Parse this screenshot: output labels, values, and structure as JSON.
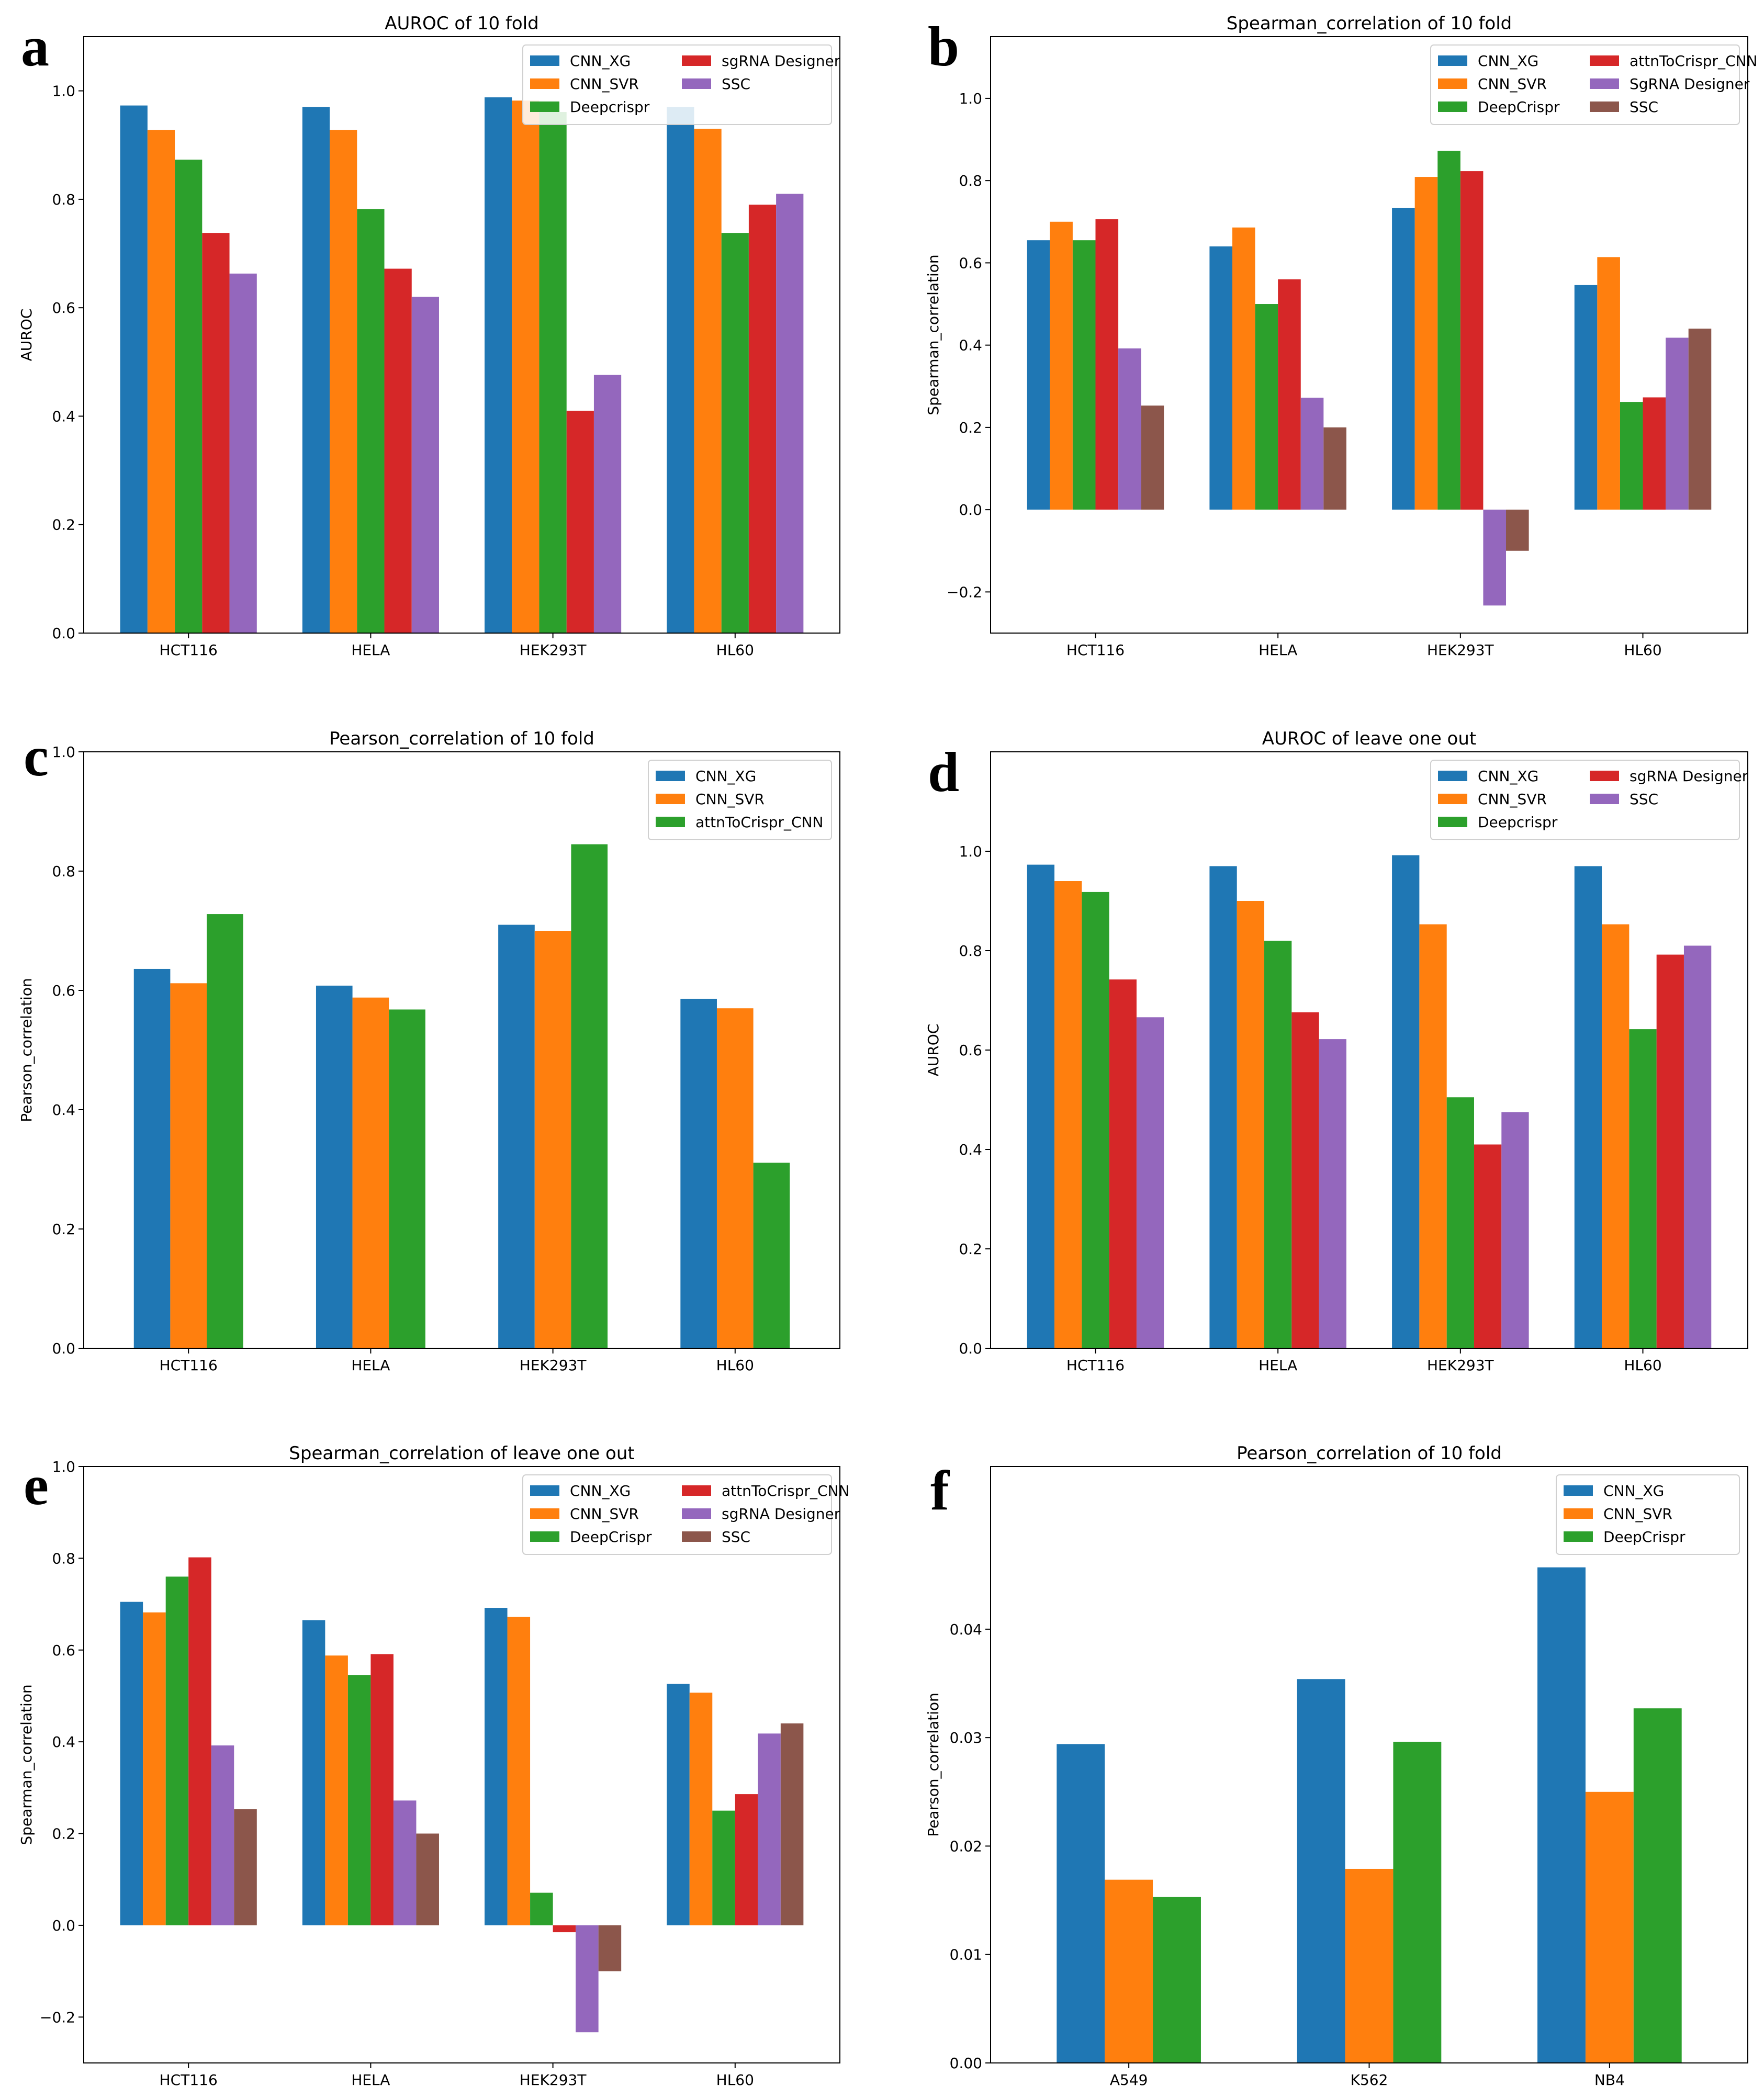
{
  "palette": {
    "CNN_XG": "#1f77b4",
    "CNN_SVR": "#ff7f0e",
    "Deepcrispr": "#2ca02c",
    "DeepCrispr": "#2ca02c",
    "sgRNA Designer": "#d62728",
    "SSC": "#9467bd",
    "attnToCrispr_CNN": "#d62728",
    "SgRNA Designer": "#9467bd",
    "SSC_brown": "#8c564b"
  },
  "chart_data": [
    {
      "panel": "a",
      "type": "bar",
      "title": "AUROC of 10 fold",
      "xlabel": "",
      "ylabel": "AUROC",
      "ylim": [
        0,
        1.1
      ],
      "yticks": [
        "0.0",
        "0.2",
        "0.4",
        "0.6",
        "0.8",
        "1.0"
      ],
      "ytick_values": [
        0,
        0.2,
        0.4,
        0.6,
        0.8,
        1.0
      ],
      "legend_position": "top-right",
      "legend_columns": 2,
      "categories": [
        "HCT116",
        "HELA",
        "HEK293T",
        "HL60"
      ],
      "series": [
        {
          "name": "CNN_XG",
          "color": "#1f77b4",
          "values": [
            0.973,
            0.97,
            0.988,
            0.97
          ]
        },
        {
          "name": "CNN_SVR",
          "color": "#ff7f0e",
          "values": [
            0.928,
            0.928,
            0.982,
            0.93
          ]
        },
        {
          "name": "Deepcrispr",
          "color": "#2ca02c",
          "values": [
            0.873,
            0.782,
            0.961,
            0.738
          ]
        },
        {
          "name": "sgRNA Designer",
          "color": "#d62728",
          "values": [
            0.738,
            0.672,
            0.41,
            0.79
          ]
        },
        {
          "name": "SSC",
          "color": "#9467bd",
          "values": [
            0.663,
            0.62,
            0.476,
            0.81
          ]
        }
      ]
    },
    {
      "panel": "b",
      "type": "bar",
      "title": "Spearman_correlation of 10 fold",
      "xlabel": "",
      "ylabel": "Spearman_correlation",
      "ylim": [
        -0.3,
        1.15
      ],
      "yticks": [
        "−0.2",
        "0.0",
        "0.2",
        "0.4",
        "0.6",
        "0.8",
        "1.0"
      ],
      "ytick_values": [
        -0.2,
        0,
        0.2,
        0.4,
        0.6,
        0.8,
        1.0
      ],
      "legend_position": "top-right",
      "legend_columns": 2,
      "categories": [
        "HCT116",
        "HELA",
        "HEK293T",
        "HL60"
      ],
      "series": [
        {
          "name": "CNN_XG",
          "color": "#1f77b4",
          "values": [
            0.655,
            0.64,
            0.733,
            0.546
          ]
        },
        {
          "name": "CNN_SVR",
          "color": "#ff7f0e",
          "values": [
            0.7,
            0.686,
            0.809,
            0.614
          ]
        },
        {
          "name": "DeepCrispr",
          "color": "#2ca02c",
          "values": [
            0.655,
            0.5,
            0.872,
            0.262
          ]
        },
        {
          "name": "attnToCrispr_CNN",
          "color": "#d62728",
          "values": [
            0.706,
            0.56,
            0.823,
            0.273
          ]
        },
        {
          "name": "SgRNA Designer",
          "color": "#9467bd",
          "values": [
            0.392,
            0.272,
            -0.233,
            0.418
          ]
        },
        {
          "name": "SSC",
          "color": "#8c564b",
          "values": [
            0.253,
            0.2,
            -0.1,
            0.44
          ]
        }
      ]
    },
    {
      "panel": "c",
      "type": "bar",
      "title": "Pearson_correlation of 10 fold",
      "xlabel": "",
      "ylabel": "Pearson_correlation",
      "ylim": [
        0,
        1.0
      ],
      "yticks": [
        "0.0",
        "0.2",
        "0.4",
        "0.6",
        "0.8",
        "1.0"
      ],
      "ytick_values": [
        0,
        0.2,
        0.4,
        0.6,
        0.8,
        1.0
      ],
      "legend_position": "top-right",
      "legend_columns": 1,
      "categories": [
        "HCT116",
        "HELA",
        "HEK293T",
        "HL60"
      ],
      "series": [
        {
          "name": "CNN_XG",
          "color": "#1f77b4",
          "values": [
            0.636,
            0.608,
            0.71,
            0.586
          ]
        },
        {
          "name": "CNN_SVR",
          "color": "#ff7f0e",
          "values": [
            0.612,
            0.588,
            0.7,
            0.57
          ]
        },
        {
          "name": "attnToCrispr_CNN",
          "color": "#2ca02c",
          "values": [
            0.728,
            0.568,
            0.845,
            0.311
          ]
        }
      ]
    },
    {
      "panel": "d",
      "type": "bar",
      "title": "AUROC of leave one out",
      "xlabel": "",
      "ylabel": "AUROC",
      "ylim": [
        0,
        1.2
      ],
      "yticks": [
        "0.0",
        "0.2",
        "0.4",
        "0.6",
        "0.8",
        "1.0"
      ],
      "ytick_values": [
        0,
        0.2,
        0.4,
        0.6,
        0.8,
        1.0
      ],
      "legend_position": "top-right",
      "legend_columns": 2,
      "categories": [
        "HCT116",
        "HELA",
        "HEK293T",
        "HL60"
      ],
      "series": [
        {
          "name": "CNN_XG",
          "color": "#1f77b4",
          "values": [
            0.973,
            0.97,
            0.992,
            0.97
          ]
        },
        {
          "name": "CNN_SVR",
          "color": "#ff7f0e",
          "values": [
            0.94,
            0.9,
            0.853,
            0.853
          ]
        },
        {
          "name": "Deepcrispr",
          "color": "#2ca02c",
          "values": [
            0.918,
            0.82,
            0.505,
            0.642
          ]
        },
        {
          "name": "sgRNA Designer",
          "color": "#d62728",
          "values": [
            0.742,
            0.676,
            0.41,
            0.792
          ]
        },
        {
          "name": "SSC",
          "color": "#9467bd",
          "values": [
            0.666,
            0.622,
            0.475,
            0.81
          ]
        }
      ]
    },
    {
      "panel": "e",
      "type": "bar",
      "title": "Spearman_correlation of leave one out",
      "xlabel": "",
      "ylabel": "Spearman_correlation",
      "ylim": [
        -0.3,
        1.0
      ],
      "yticks": [
        "−0.2",
        "0.0",
        "0.2",
        "0.4",
        "0.6",
        "0.8",
        "1.0"
      ],
      "ytick_values": [
        -0.2,
        0,
        0.2,
        0.4,
        0.6,
        0.8,
        1.0
      ],
      "legend_position": "top-right",
      "legend_columns": 2,
      "categories": [
        "HCT116",
        "HELA",
        "HEK293T",
        "HL60"
      ],
      "series": [
        {
          "name": "CNN_XG",
          "color": "#1f77b4",
          "values": [
            0.705,
            0.665,
            0.692,
            0.526
          ]
        },
        {
          "name": "CNN_SVR",
          "color": "#ff7f0e",
          "values": [
            0.682,
            0.588,
            0.672,
            0.507
          ]
        },
        {
          "name": "DeepCrispr",
          "color": "#2ca02c",
          "values": [
            0.76,
            0.545,
            0.071,
            0.25
          ]
        },
        {
          "name": "attnToCrispr_CNN",
          "color": "#d62728",
          "values": [
            0.802,
            0.591,
            -0.015,
            0.286
          ]
        },
        {
          "name": "sgRNA Designer",
          "color": "#9467bd",
          "values": [
            0.392,
            0.272,
            -0.233,
            0.418
          ]
        },
        {
          "name": "SSC",
          "color": "#8c564b",
          "values": [
            0.253,
            0.2,
            -0.1,
            0.44
          ]
        }
      ]
    },
    {
      "panel": "f",
      "type": "bar",
      "title": "Pearson_correlation of 10 fold",
      "xlabel": "",
      "ylabel": "Pearson_correlation",
      "ylim": [
        0,
        0.055
      ],
      "yticks": [
        "0.00",
        "0.01",
        "0.02",
        "0.03",
        "0.04"
      ],
      "ytick_values": [
        0,
        0.01,
        0.02,
        0.03,
        0.04
      ],
      "legend_position": "top-right",
      "legend_columns": 1,
      "categories": [
        "A549",
        "K562",
        "NB4"
      ],
      "series": [
        {
          "name": "CNN_XG",
          "color": "#1f77b4",
          "values": [
            0.0294,
            0.0354,
            0.0457
          ]
        },
        {
          "name": "CNN_SVR",
          "color": "#ff7f0e",
          "values": [
            0.0169,
            0.0179,
            0.025
          ]
        },
        {
          "name": "DeepCrispr",
          "color": "#2ca02c",
          "values": [
            0.0153,
            0.0296,
            0.0327
          ]
        }
      ]
    }
  ]
}
